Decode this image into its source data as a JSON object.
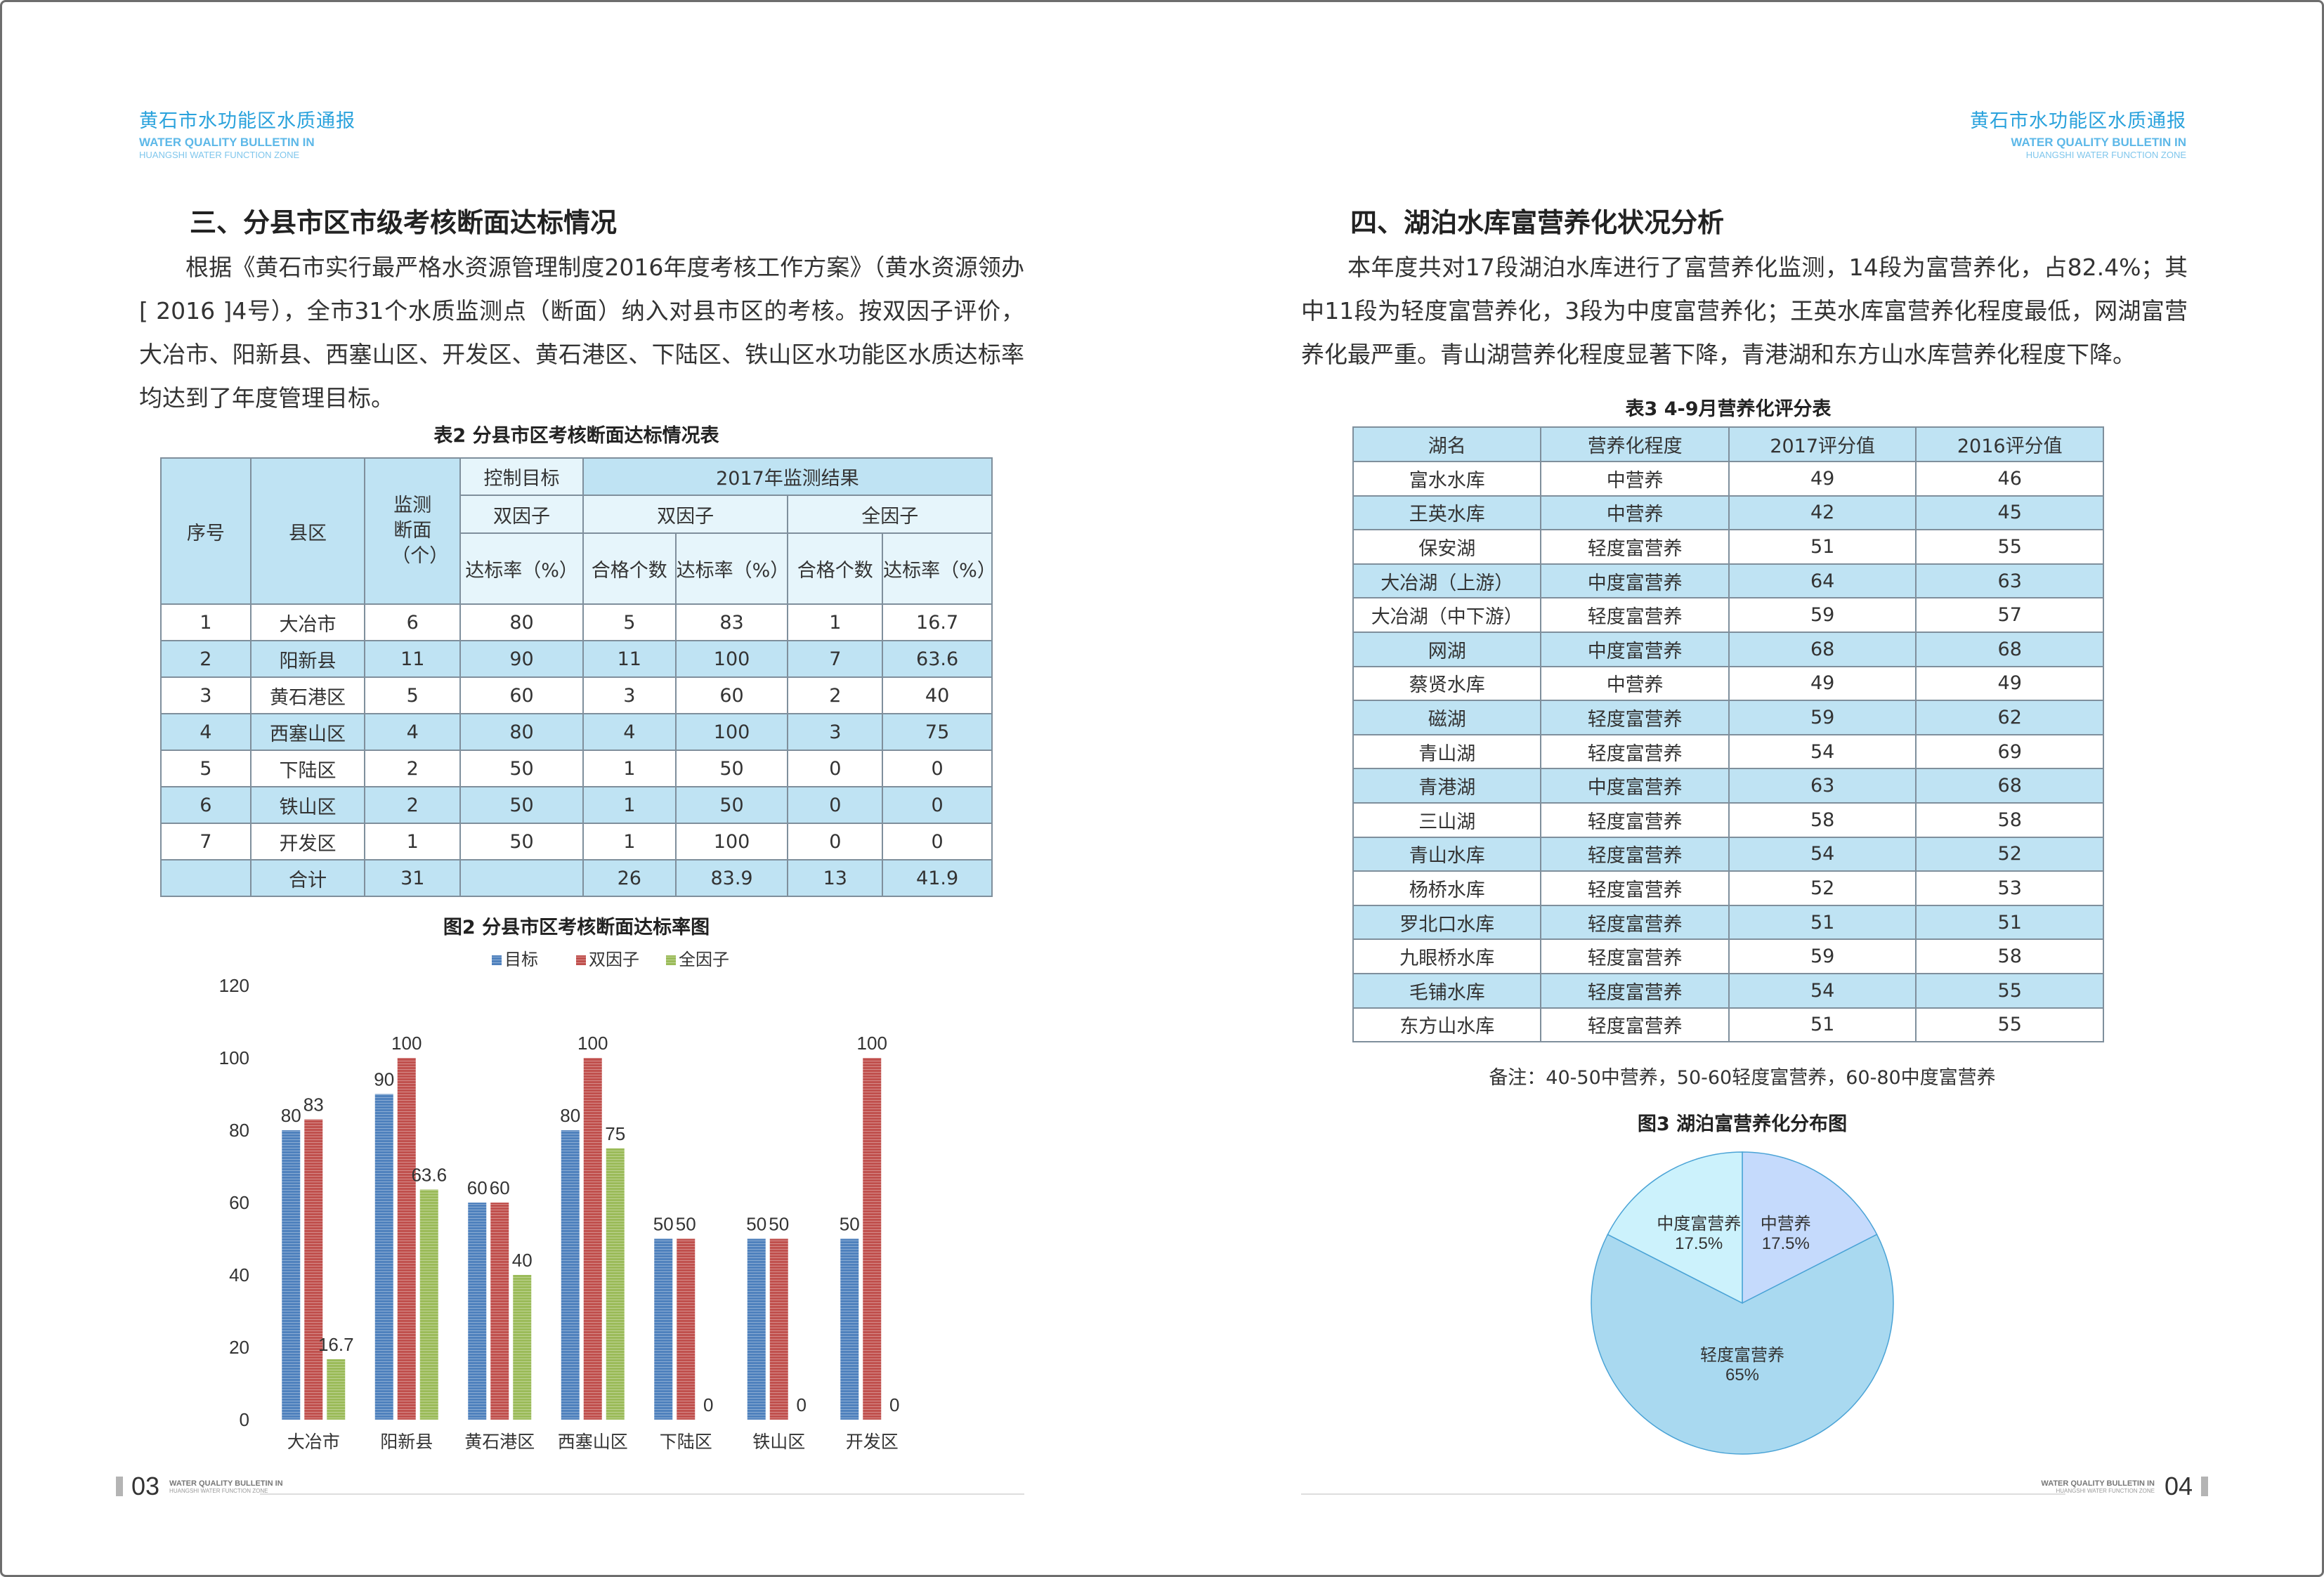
{
  "header": {
    "title_cn": "黄石市水功能区水质通报",
    "title_en1": "WATER QUALITY BULLETIN IN",
    "title_en2": "HUANGSHI WATER FUNCTION ZONE"
  },
  "left": {
    "heading": "三、分县市区市级考核断面达标情况",
    "paragraph": "根据《黄石市实行最严格水资源管理制度2016年度考核工作方案》（黄水资源领办[ 2016 ]4号），全市31个水质监测点（断面）纳入对县市区的考核。按双因子评价，大冶市、阳新县、西塞山区、开发区、黄石港区、下陆区、铁山区水功能区水质达标率均达到了年度管理目标。",
    "table_caption": "表2 分县市区考核断面达标情况表",
    "table": {
      "h_no": "序号",
      "h_county": "县区",
      "h_count": "监测断面（个）",
      "h_target": "控制目标",
      "h_result": "2017年监测结果",
      "h_dual": "双因子",
      "h_dual2": "双因子",
      "h_all": "全因子",
      "h_rate": "达标率（%）",
      "h_qual": "合格个数",
      "h_rate2": "达标率（%）",
      "h_qual2": "合格个数",
      "h_rate3": "达标率（%）",
      "rows": [
        [
          "1",
          "大冶市",
          "6",
          "80",
          "5",
          "83",
          "1",
          "16.7"
        ],
        [
          "2",
          "阳新县",
          "11",
          "90",
          "11",
          "100",
          "7",
          "63.6"
        ],
        [
          "3",
          "黄石港区",
          "5",
          "60",
          "3",
          "60",
          "2",
          "40"
        ],
        [
          "4",
          "西塞山区",
          "4",
          "80",
          "4",
          "100",
          "3",
          "75"
        ],
        [
          "5",
          "下陆区",
          "2",
          "50",
          "1",
          "50",
          "0",
          "0"
        ],
        [
          "6",
          "铁山区",
          "2",
          "50",
          "1",
          "50",
          "0",
          "0"
        ],
        [
          "7",
          "开发区",
          "1",
          "50",
          "1",
          "100",
          "0",
          "0"
        ],
        [
          "",
          "合计",
          "31",
          "",
          "26",
          "83.9",
          "13",
          "41.9"
        ]
      ]
    },
    "figure_caption": "图2  分县市区考核断面达标率图",
    "page_number": "03"
  },
  "chart_data": [
    {
      "type": "bar",
      "categories": [
        "大冶市",
        "阳新县",
        "黄石港区",
        "西塞山区",
        "下陆区",
        "铁山区",
        "开发区"
      ],
      "series": [
        {
          "name": "目标",
          "color": "#4f81bd",
          "values": [
            80,
            90,
            60,
            80,
            50,
            50,
            50
          ]
        },
        {
          "name": "双因子",
          "color": "#c0504d",
          "values": [
            83,
            100,
            60,
            100,
            50,
            50,
            100
          ]
        },
        {
          "name": "全因子",
          "color": "#9bbb59",
          "values": [
            16.7,
            63.6,
            40,
            75,
            0,
            0,
            0
          ]
        }
      ],
      "ylim": [
        0,
        120
      ],
      "yticks": [
        "0",
        "20",
        "40",
        "60",
        "80",
        "100",
        "120"
      ],
      "legend": "top",
      "grid": false
    },
    {
      "type": "pie",
      "title": "图3  湖泊富营养化分布图",
      "slices": [
        {
          "label": "中营养",
          "pct_label": "17.5%",
          "value": 17.5,
          "color": "#c5dafc"
        },
        {
          "label": "轻度富营养",
          "pct_label": "65%",
          "value": 65,
          "color": "#a9d9f0"
        },
        {
          "label": "中度富营养",
          "pct_label": "17.5%",
          "value": 17.5,
          "color": "#ccf2fc"
        }
      ]
    }
  ],
  "right": {
    "heading": "四、湖泊水库富营养化状况分析",
    "paragraph": "本年度共对17段湖泊水库进行了富营养化监测，14段为富营养化，占82.4%；其中11段为轻度富营养化，3段为中度富营养化；王英水库富营养化程度最低，网湖富营养化最严重。青山湖营养化程度显著下降，青港湖和东方山水库营养化程度下降。",
    "table_caption": "表3   4-9月营养化评分表",
    "table": {
      "headers": [
        "湖名",
        "营养化程度",
        "2017评分值",
        "2016评分值"
      ],
      "rows": [
        [
          "富水水库",
          "中营养",
          "49",
          "46"
        ],
        [
          "王英水库",
          "中营养",
          "42",
          "45"
        ],
        [
          "保安湖",
          "轻度富营养",
          "51",
          "55"
        ],
        [
          "大冶湖（上游）",
          "中度富营养",
          "64",
          "63"
        ],
        [
          "大冶湖（中下游）",
          "轻度富营养",
          "59",
          "57"
        ],
        [
          "网湖",
          "中度富营养",
          "68",
          "68"
        ],
        [
          "蔡贤水库",
          "中营养",
          "49",
          "49"
        ],
        [
          "磁湖",
          "轻度富营养",
          "59",
          "62"
        ],
        [
          "青山湖",
          "轻度富营养",
          "54",
          "69"
        ],
        [
          "青港湖",
          "中度富营养",
          "63",
          "68"
        ],
        [
          "三山湖",
          "轻度富营养",
          "58",
          "58"
        ],
        [
          "青山水库",
          "轻度富营养",
          "54",
          "52"
        ],
        [
          "杨桥水库",
          "轻度富营养",
          "52",
          "53"
        ],
        [
          "罗北口水库",
          "轻度富营养",
          "51",
          "51"
        ],
        [
          "九眼桥水库",
          "轻度富营养",
          "59",
          "58"
        ],
        [
          "毛铺水库",
          "轻度富营养",
          "54",
          "55"
        ],
        [
          "东方山水库",
          "轻度富营养",
          "51",
          "55"
        ]
      ]
    },
    "note": "备注：40-50中营养，50-60轻度富营养，60-80中度富营养",
    "page_number": "04"
  }
}
